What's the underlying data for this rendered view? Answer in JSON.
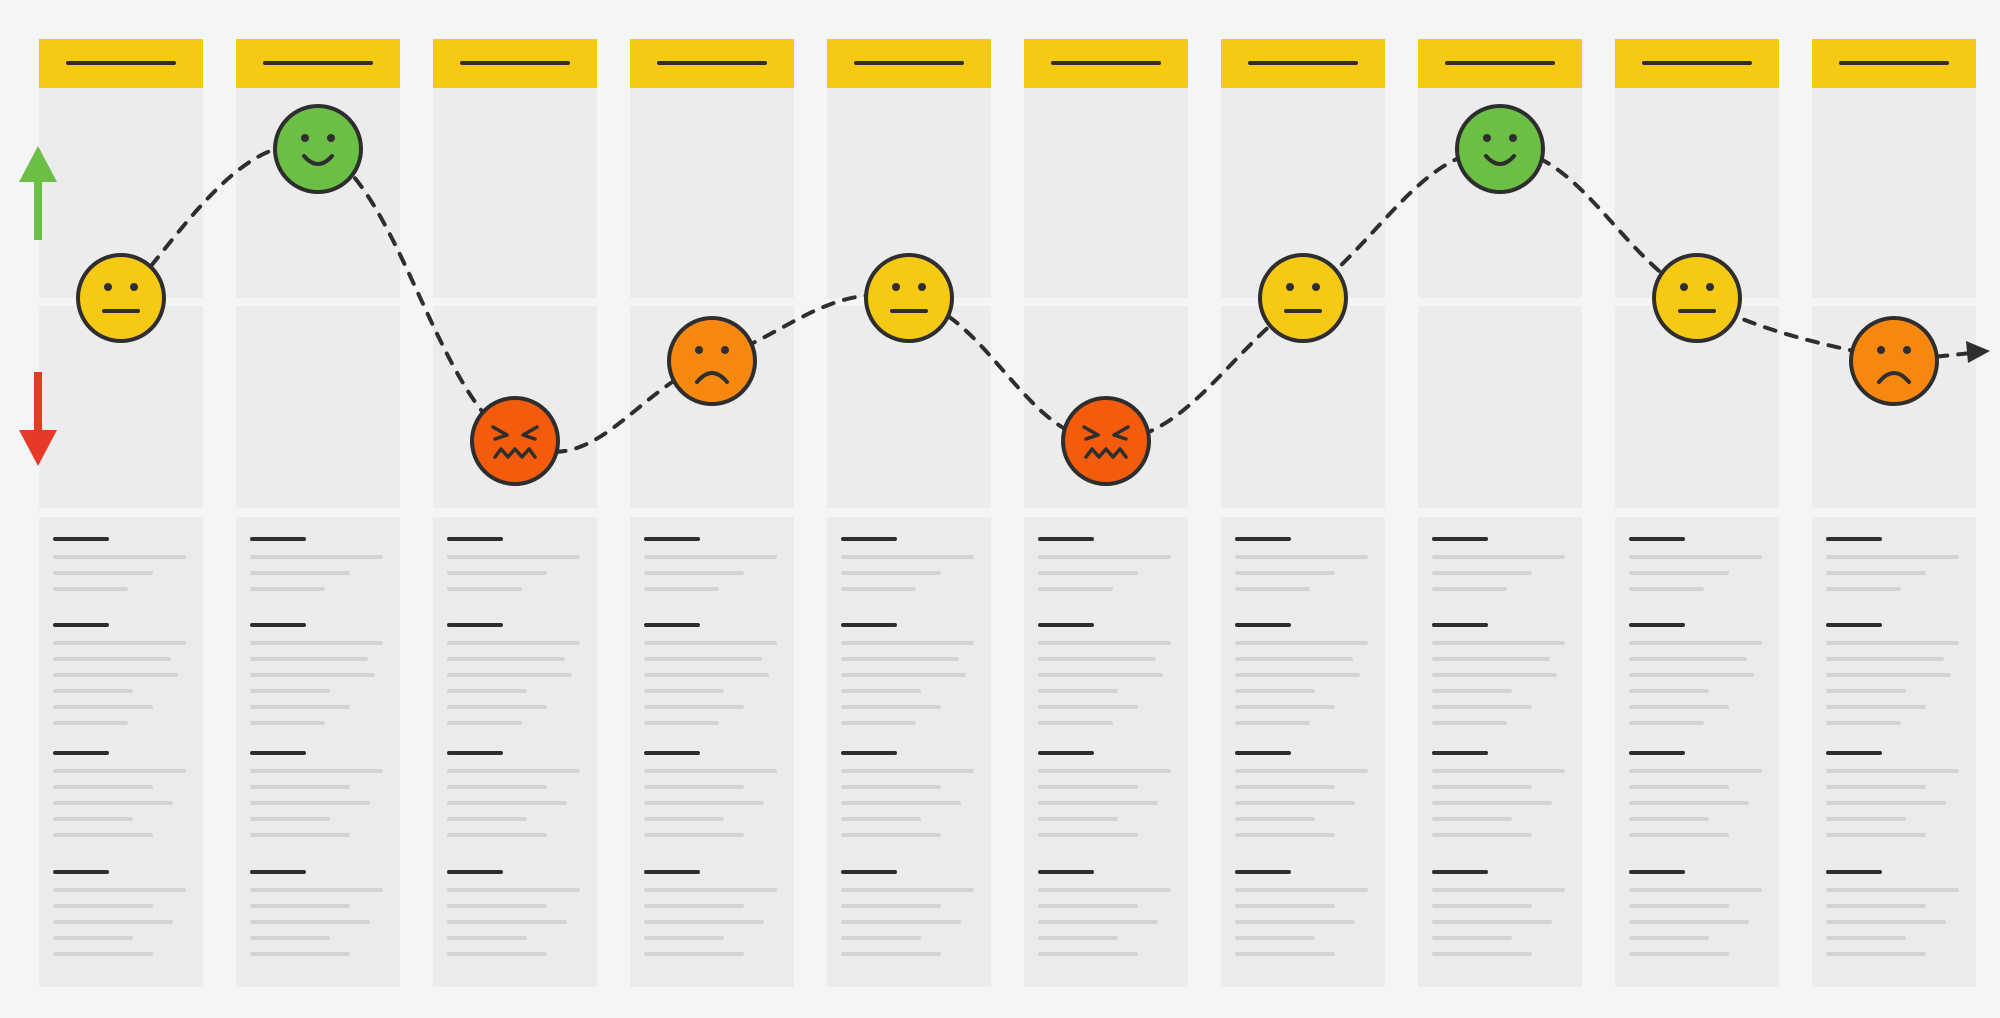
{
  "colors": {
    "header": "#f6c914",
    "lane": "#ececec",
    "positive_arrow": "#6cbf45",
    "negative_arrow": "#e53a25",
    "neutral_face": "#f6c914",
    "happy_face": "#6cbf45",
    "sad_face": "#f7880f",
    "angry_face": "#f25c0c",
    "curve": "#2e2e2e"
  },
  "axis": {
    "up_icon": "arrow-up-icon",
    "down_icon": "arrow-down-icon"
  },
  "stages": [
    {
      "emotion": "neutral",
      "level": 0.0
    },
    {
      "emotion": "happy",
      "level": 1.0
    },
    {
      "emotion": "angry",
      "level": -1.0
    },
    {
      "emotion": "sad",
      "level": -0.45
    },
    {
      "emotion": "neutral",
      "level": 0.0
    },
    {
      "emotion": "angry",
      "level": -1.0
    },
    {
      "emotion": "neutral",
      "level": 0.0
    },
    {
      "emotion": "happy",
      "level": 1.0
    },
    {
      "emotion": "neutral",
      "level": 0.0
    },
    {
      "emotion": "sad",
      "level": -0.45
    }
  ]
}
